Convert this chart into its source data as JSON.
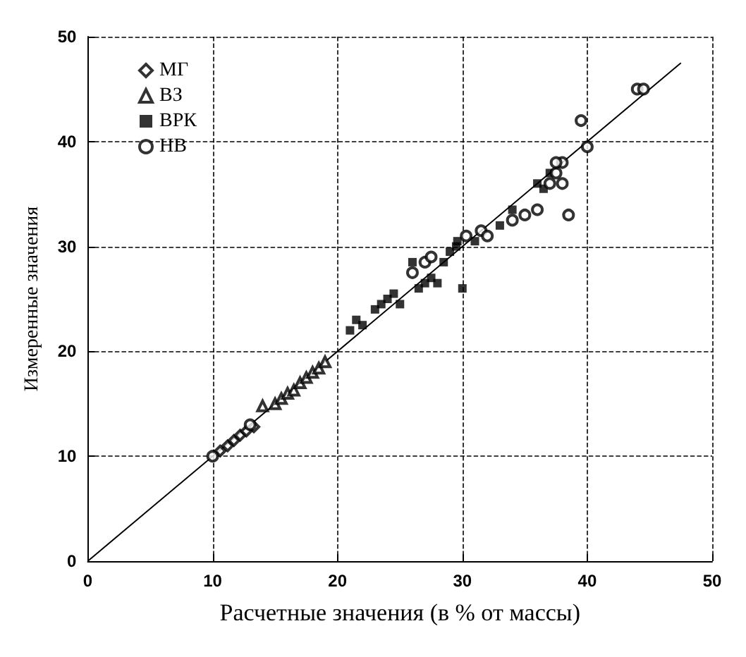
{
  "chart_data": {
    "type": "scatter",
    "xlabel": "Расчетные значения (в % от массы)",
    "ylabel": "Измеренные значения",
    "xlim": [
      0,
      50
    ],
    "ylim": [
      0,
      50
    ],
    "xticks": [
      0,
      10,
      20,
      30,
      40,
      50
    ],
    "yticks": [
      0,
      10,
      20,
      30,
      40,
      50
    ],
    "grid": true,
    "legend": "top left",
    "series": [
      {
        "name": "МГ",
        "color": "#000000",
        "marker": "diamond",
        "x": [
          10.6,
          11.2,
          11.7,
          12.2,
          12.7,
          13.3
        ],
        "values": [
          10.5,
          11,
          11.5,
          12,
          12.4,
          12.8
        ]
      },
      {
        "name": "ВЗ",
        "color": "#000000",
        "marker": "triangle",
        "x": [
          14,
          15,
          15.5,
          16,
          16.5,
          17,
          17.5,
          18,
          18.5,
          19
        ],
        "values": [
          14.8,
          15,
          15.5,
          16,
          16.3,
          17,
          17.5,
          18,
          18.4,
          19
        ]
      },
      {
        "name": "ВРК",
        "color": "#000000",
        "marker": "square",
        "x": [
          21,
          21.5,
          22,
          23,
          23.5,
          24,
          24.5,
          25,
          26,
          26.5,
          27,
          27.5,
          28,
          28.5,
          29,
          29.5,
          30,
          29.6,
          31,
          33,
          34,
          36,
          36.5,
          37
        ],
        "values": [
          22,
          23,
          22.5,
          24,
          24.5,
          25,
          25.5,
          24.5,
          28.5,
          26,
          26.5,
          27,
          26.5,
          28.5,
          29.5,
          30,
          26,
          30.5,
          30.5,
          32,
          33.5,
          36,
          35.5,
          37
        ]
      },
      {
        "name": "НВ",
        "color": "#000000",
        "marker": "circle",
        "x": [
          10,
          13,
          26,
          27,
          27.5,
          30.3,
          31.5,
          32,
          34,
          35,
          36,
          37,
          37.5,
          38,
          37.5,
          38.5,
          38,
          40,
          39.5,
          44,
          44.5
        ],
        "values": [
          10,
          13,
          27.5,
          28.5,
          29,
          31,
          31.5,
          31,
          32.5,
          33,
          33.5,
          36,
          37,
          38,
          38,
          33,
          36,
          39.5,
          42,
          45,
          45
        ]
      },
      {
        "type": "line",
        "color": "#000000",
        "x": [
          0,
          47.5
        ],
        "values": [
          0,
          47.5
        ]
      }
    ]
  }
}
